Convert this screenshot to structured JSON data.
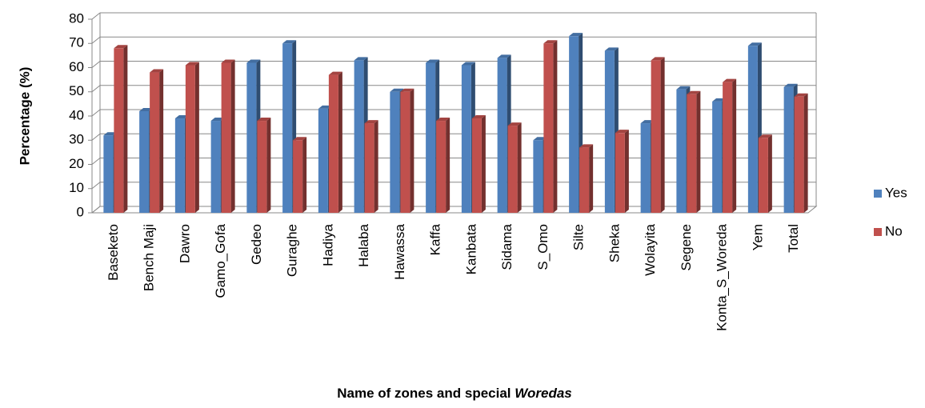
{
  "chart_data": {
    "type": "bar3d",
    "y_label": "Percentage (%)",
    "x_label": [
      "Name of zones and special",
      "Woredas"
    ],
    "categories": [
      "Baseketo",
      "Bench Maji",
      "Dawro",
      "Gamo_Gofa",
      "Gedeo",
      "Guraghe",
      "Hadiya",
      "Halaba",
      "Hawassa",
      "Kaffa",
      "Kanbata",
      "Sidama",
      "S_Omo",
      "Silte",
      "Sheka",
      "Wolayita",
      "Segene",
      "Konta_S_Woreda",
      "Yem",
      "Total"
    ],
    "series": [
      {
        "name": "Yes",
        "color": "#4f81bd",
        "values": [
          32,
          42,
          39,
          38,
          62,
          70,
          43,
          63,
          50,
          62,
          61,
          64,
          30,
          73,
          67,
          37,
          51,
          46,
          69,
          52
        ]
      },
      {
        "name": "No",
        "color": "#c0504d",
        "values": [
          68,
          58,
          61,
          62,
          38,
          30,
          57,
          37,
          50,
          38,
          39,
          36,
          70,
          27,
          33,
          63,
          49,
          54,
          31,
          48
        ]
      }
    ],
    "ylim": [
      0,
      80
    ],
    "yticks": [
      0,
      10,
      20,
      30,
      40,
      50,
      60,
      70,
      80
    ],
    "grid": true,
    "legend": "right"
  }
}
